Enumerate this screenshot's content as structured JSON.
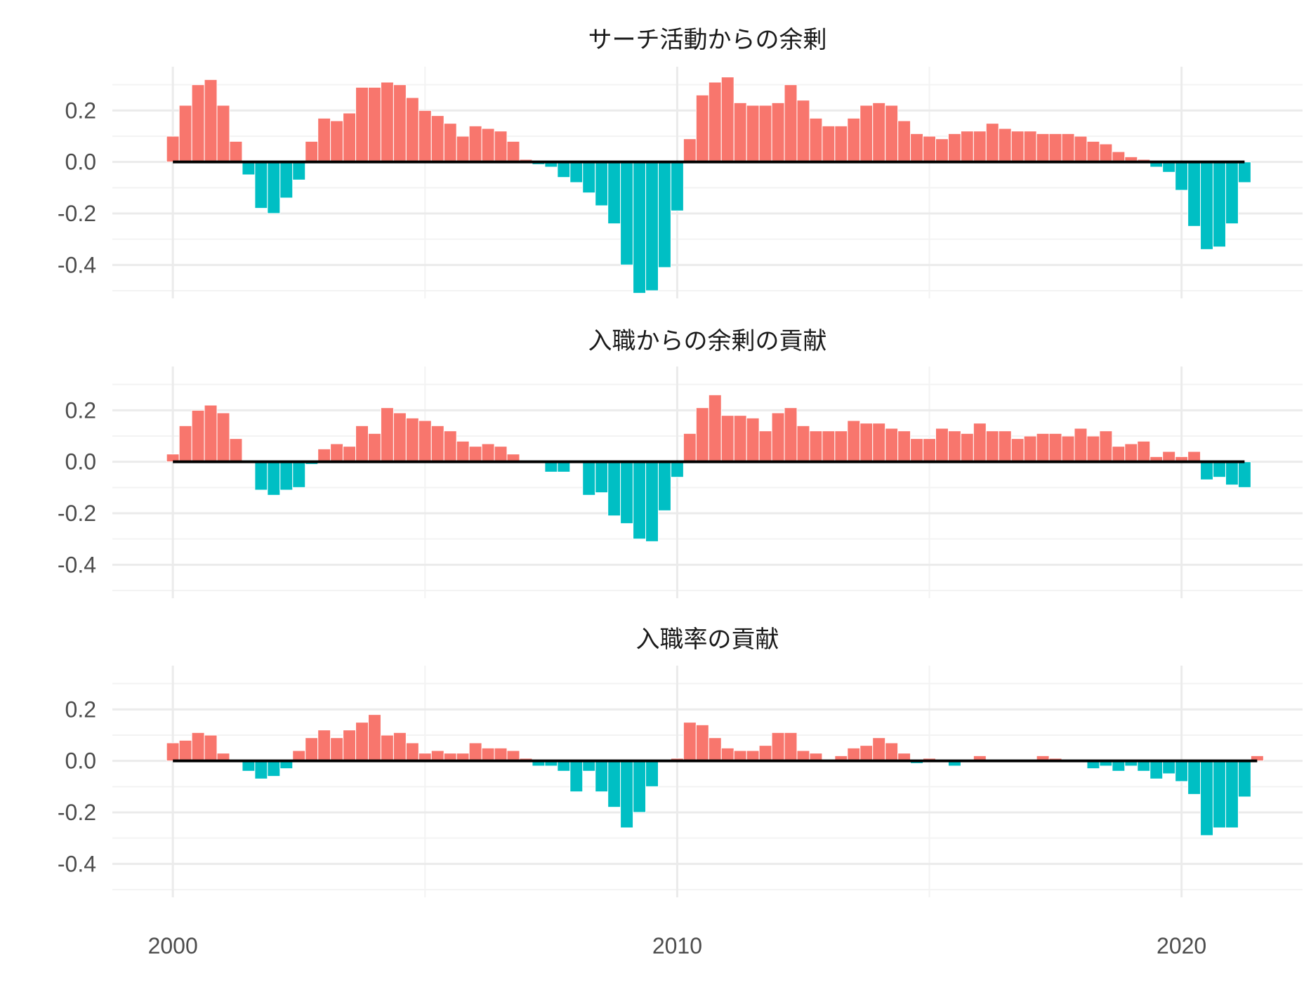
{
  "chart_data": [
    {
      "type": "bar",
      "title": "サーチ活動からの余剰",
      "x_start": 2000.0,
      "x_step": 0.25,
      "xlim": [
        1998.8,
        2022.4
      ],
      "ylim": [
        -0.53,
        0.37
      ],
      "x_ticks": [
        2000,
        2010,
        2020
      ],
      "y_ticks": [
        0.2,
        0.0,
        -0.2,
        -0.4
      ],
      "y_tick_labels": [
        "0.2",
        "0.0",
        "-0.2",
        "-0.4"
      ],
      "grid": true,
      "values": [
        0.1,
        0.22,
        0.3,
        0.32,
        0.22,
        0.08,
        -0.05,
        -0.18,
        -0.2,
        -0.14,
        -0.07,
        0.08,
        0.17,
        0.16,
        0.19,
        0.29,
        0.29,
        0.31,
        0.3,
        0.25,
        0.2,
        0.18,
        0.15,
        0.1,
        0.14,
        0.13,
        0.12,
        0.08,
        0.01,
        -0.01,
        -0.02,
        -0.06,
        -0.08,
        -0.12,
        -0.17,
        -0.24,
        -0.4,
        -0.51,
        -0.5,
        -0.41,
        -0.19,
        0.09,
        0.26,
        0.31,
        0.33,
        0.23,
        0.22,
        0.22,
        0.23,
        0.3,
        0.24,
        0.17,
        0.14,
        0.14,
        0.17,
        0.22,
        0.23,
        0.22,
        0.16,
        0.11,
        0.1,
        0.09,
        0.11,
        0.12,
        0.12,
        0.15,
        0.13,
        0.12,
        0.12,
        0.11,
        0.11,
        0.11,
        0.1,
        0.08,
        0.07,
        0.04,
        0.02,
        0.01,
        -0.02,
        -0.04,
        -0.11,
        -0.25,
        -0.34,
        -0.33,
        -0.24,
        -0.08
      ]
    },
    {
      "type": "bar",
      "title": "入職からの余剰の貢献",
      "x_start": 2000.0,
      "x_step": 0.25,
      "xlim": [
        1998.8,
        2022.4
      ],
      "ylim": [
        -0.53,
        0.37
      ],
      "x_ticks": [
        2000,
        2010,
        2020
      ],
      "y_ticks": [
        0.2,
        0.0,
        -0.2,
        -0.4
      ],
      "y_tick_labels": [
        "0.2",
        "0.0",
        "-0.2",
        "-0.4"
      ],
      "grid": true,
      "values": [
        0.03,
        0.14,
        0.2,
        0.22,
        0.19,
        0.09,
        0.0,
        -0.11,
        -0.13,
        -0.11,
        -0.1,
        -0.01,
        0.05,
        0.07,
        0.06,
        0.14,
        0.11,
        0.21,
        0.19,
        0.17,
        0.16,
        0.14,
        0.12,
        0.08,
        0.06,
        0.07,
        0.06,
        0.03,
        0.0,
        0.0,
        -0.04,
        -0.04,
        0.0,
        -0.13,
        -0.12,
        -0.21,
        -0.24,
        -0.3,
        -0.31,
        -0.19,
        -0.06,
        0.11,
        0.21,
        0.26,
        0.18,
        0.18,
        0.17,
        0.12,
        0.19,
        0.21,
        0.14,
        0.12,
        0.12,
        0.12,
        0.16,
        0.15,
        0.15,
        0.13,
        0.12,
        0.09,
        0.09,
        0.13,
        0.12,
        0.11,
        0.15,
        0.12,
        0.12,
        0.09,
        0.1,
        0.11,
        0.11,
        0.1,
        0.13,
        0.1,
        0.12,
        0.06,
        0.07,
        0.08,
        0.02,
        0.04,
        0.02,
        0.04,
        -0.07,
        -0.06,
        -0.09,
        -0.1
      ]
    },
    {
      "type": "bar",
      "title": "入職率の貢献",
      "x_start": 2000.0,
      "x_step": 0.25,
      "xlim": [
        1998.8,
        2022.4
      ],
      "ylim": [
        -0.53,
        0.37
      ],
      "x_ticks": [
        2000,
        2010,
        2020
      ],
      "x_tick_labels": [
        "2000",
        "2010",
        "2020"
      ],
      "y_ticks": [
        0.2,
        0.0,
        -0.2,
        -0.4
      ],
      "y_tick_labels": [
        "0.2",
        "0.0",
        "-0.2",
        "-0.4"
      ],
      "grid": true,
      "values": [
        0.07,
        0.08,
        0.11,
        0.1,
        0.03,
        0.0,
        -0.04,
        -0.07,
        -0.06,
        -0.03,
        0.04,
        0.09,
        0.12,
        0.09,
        0.12,
        0.15,
        0.18,
        0.1,
        0.11,
        0.07,
        0.03,
        0.04,
        0.03,
        0.03,
        0.07,
        0.05,
        0.05,
        0.04,
        0.01,
        -0.02,
        -0.02,
        -0.04,
        -0.12,
        -0.04,
        -0.12,
        -0.18,
        -0.26,
        -0.2,
        -0.1,
        0.0,
        0.01,
        0.15,
        0.14,
        0.09,
        0.05,
        0.04,
        0.04,
        0.06,
        0.11,
        0.11,
        0.04,
        0.03,
        0.0,
        0.02,
        0.05,
        0.06,
        0.09,
        0.07,
        0.03,
        -0.01,
        0.01,
        0.0,
        -0.02,
        0.0,
        0.02,
        0.0,
        0.0,
        0.0,
        0.0,
        0.02,
        0.01,
        0.0,
        0.0,
        -0.03,
        -0.02,
        -0.04,
        -0.02,
        -0.04,
        -0.07,
        -0.05,
        -0.08,
        -0.13,
        -0.29,
        -0.26,
        -0.26,
        -0.14,
        0.02
      ]
    }
  ],
  "colors": {
    "positive": "#F8766D",
    "negative": "#00BFC4",
    "zero_line": "#000000"
  }
}
